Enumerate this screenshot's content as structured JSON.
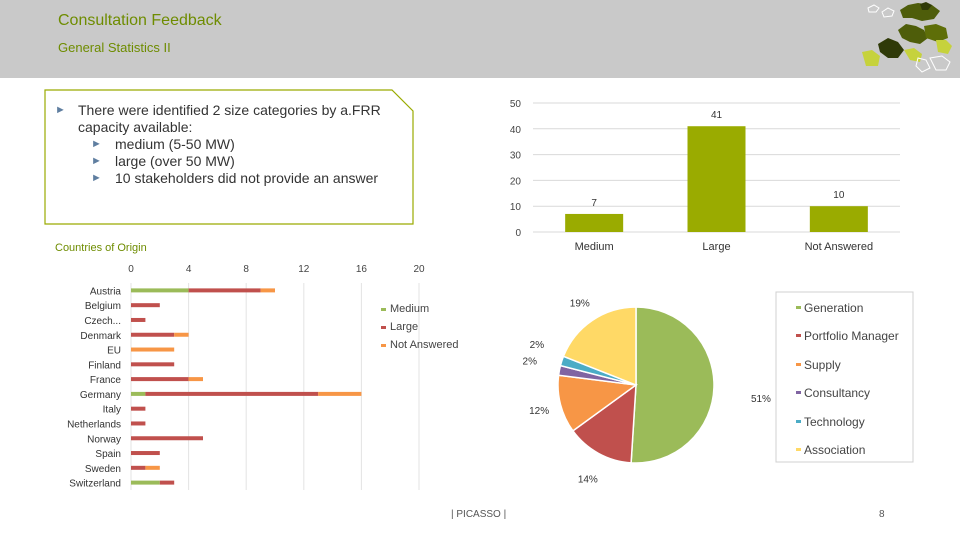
{
  "header": {
    "title": "Consultation Feedback",
    "subtitle": "General Statistics II"
  },
  "bullets": {
    "main": "There were identified 2 size categories by a.FRR capacity available:",
    "items": [
      "medium (5-50 MW)",
      "large (over 50 MW)",
      "10 stakeholders did not provide an answer"
    ]
  },
  "colors": {
    "accent": "#6e8c00",
    "bar_green": "#9aab00",
    "medium": "#9bbb59",
    "large": "#c0504d",
    "not_answered": "#f79646",
    "pie_generation": "#9bbb59",
    "pie_portfolio": "#c0504d",
    "pie_supply": "#f79646",
    "pie_consultancy": "#8064a2",
    "pie_technology": "#4bacc6",
    "pie_association": "#ffd966"
  },
  "footer": {
    "text": "| PICASSO |",
    "page": "8"
  },
  "chart_data": [
    {
      "type": "bar",
      "title": "",
      "categories": [
        "Medium",
        "Large",
        "Not Answered"
      ],
      "values": [
        7,
        41,
        10
      ],
      "ylim": [
        0,
        50
      ],
      "yticks": [
        "0",
        "10",
        "20",
        "30",
        "40",
        "50"
      ]
    },
    {
      "type": "bar",
      "orientation": "horizontal-stacked",
      "title": "Countries of Origin",
      "categories": [
        "Austria",
        "Belgium",
        "Czech...",
        "Denmark",
        "EU",
        "Finland",
        "France",
        "Germany",
        "Italy",
        "Netherlands",
        "Norway",
        "Spain",
        "Sweden",
        "Switzerland"
      ],
      "series": [
        {
          "name": "Medium",
          "values": [
            4,
            0,
            0,
            0,
            0,
            0,
            0,
            1,
            0,
            0,
            0,
            0,
            0,
            2
          ]
        },
        {
          "name": "Large",
          "values": [
            5,
            2,
            1,
            3,
            0,
            3,
            4,
            12,
            1,
            1,
            5,
            2,
            1,
            1
          ]
        },
        {
          "name": "Not Answered",
          "values": [
            1,
            0,
            0,
            1,
            3,
            0,
            1,
            3,
            0,
            0,
            0,
            0,
            1,
            0
          ]
        }
      ],
      "xlim": [
        0,
        20
      ],
      "xticks": [
        "0",
        "4",
        "8",
        "12",
        "16",
        "20"
      ]
    },
    {
      "type": "pie",
      "title": "",
      "labels": [
        "Generation",
        "Portfolio Manager",
        "Supply",
        "Consultancy",
        "Technology",
        "Association"
      ],
      "values": [
        51,
        14,
        12,
        2,
        2,
        19
      ],
      "value_labels": [
        "51%",
        "14%",
        "12%",
        "2%",
        "2%",
        "19%"
      ]
    }
  ]
}
